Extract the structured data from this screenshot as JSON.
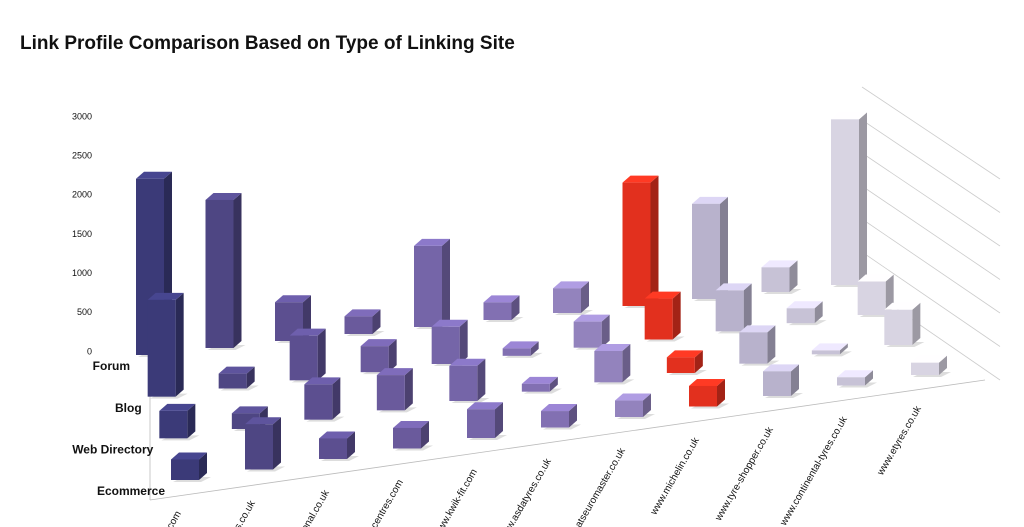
{
  "chart_data": {
    "type": "bar3d",
    "title": "Link Profile Comparison Based on Type of Linking Site",
    "categories": [
      ".com",
      "es.co.uk",
      "ional.co.uk",
      "tocentres.com",
      "www.kwik-fit.com",
      "www.asdatyres.co.uk",
      "www.atseuromaster.co.uk",
      "www.michelin.co.uk",
      "www.tyre-shopper.co.uk",
      "www.continental-tyres.co.uk",
      "www.etyres.co.uk"
    ],
    "colors": [
      "#3b3a78",
      "#4e4683",
      "#5c4f90",
      "#6a5a9c",
      "#7565a8",
      "#8270b2",
      "#9383bd",
      "#e2301e",
      "#b8b2cc",
      "#c7c2d6",
      "#d8d4e2"
    ],
    "series": [
      {
        "name": "Forum",
        "values": [
          2500,
          2100,
          550,
          250,
          1150,
          250,
          350,
          1750,
          1350,
          350,
          2350
        ]
      },
      {
        "name": "Blog",
        "values": [
          1300,
          200,
          600,
          350,
          500,
          100,
          350,
          550,
          550,
          200,
          450
        ]
      },
      {
        "name": "Web Directory",
        "values": [
          350,
          200,
          450,
          450,
          450,
          100,
          400,
          200,
          400,
          50,
          450
        ]
      },
      {
        "name": "Ecommerce",
        "values": [
          250,
          550,
          250,
          250,
          350,
          200,
          200,
          250,
          300,
          100,
          150
        ]
      }
    ],
    "ylim": [
      0,
      3000
    ],
    "yticks": [
      0,
      500,
      1000,
      1500,
      2000,
      2500,
      3000
    ],
    "grid": true
  }
}
